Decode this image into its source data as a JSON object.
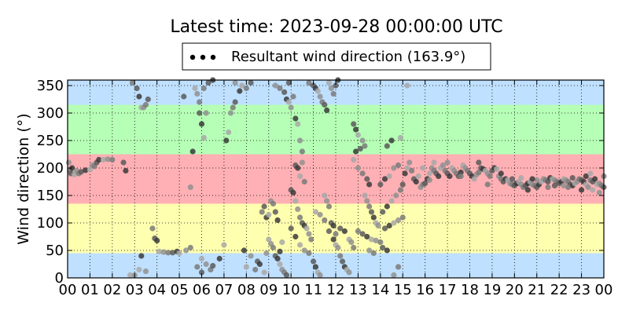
{
  "chart_data": {
    "type": "scatter",
    "title": "Latest time: 2023-09-28 00:00:00 UTC",
    "ylabel": "Wind direction (°)",
    "xlabel": "",
    "ylim": [
      0,
      360
    ],
    "xlim": [
      0,
      24
    ],
    "grid": true,
    "legend": {
      "placement": "top-center",
      "label": "Resultant wind direction (163.9°)"
    },
    "yticks": [
      0,
      50,
      100,
      150,
      200,
      250,
      300,
      350
    ],
    "xticks": [
      0,
      1,
      2,
      3,
      4,
      5,
      6,
      7,
      8,
      9,
      10,
      11,
      12,
      13,
      14,
      15,
      16,
      17,
      18,
      19,
      20,
      21,
      22,
      23,
      24
    ],
    "xtick_labels": [
      "00",
      "01",
      "02",
      "03",
      "04",
      "05",
      "06",
      "07",
      "08",
      "09",
      "10",
      "11",
      "12",
      "13",
      "14",
      "15",
      "16",
      "17",
      "18",
      "19",
      "20",
      "21",
      "22",
      "23",
      "00"
    ],
    "bands": [
      {
        "from": 0,
        "to": 45,
        "color": "#bfe0ff"
      },
      {
        "from": 45,
        "to": 135,
        "color": "#ffffb0"
      },
      {
        "from": 135,
        "to": 225,
        "color": "#ffb0b4"
      },
      {
        "from": 225,
        "to": 315,
        "color": "#b6ffb6"
      },
      {
        "from": 315,
        "to": 360,
        "color": "#bfe0ff"
      }
    ],
    "point_colors": [
      "#909090",
      "#7a7a7a",
      "#5a5a5a",
      "#3a3a3a",
      "#a8a8a8"
    ],
    "points": [
      [
        0.05,
        210
      ],
      [
        0.1,
        195
      ],
      [
        0.15,
        190
      ],
      [
        0.2,
        200
      ],
      [
        0.3,
        188
      ],
      [
        0.4,
        195
      ],
      [
        0.5,
        190
      ],
      [
        0.6,
        193
      ],
      [
        0.8,
        196
      ],
      [
        1.0,
        197
      ],
      [
        1.1,
        205
      ],
      [
        1.2,
        203
      ],
      [
        1.3,
        210
      ],
      [
        1.4,
        215
      ],
      [
        1.6,
        215
      ],
      [
        1.8,
        216
      ],
      [
        2.0,
        215
      ],
      [
        2.5,
        210
      ],
      [
        2.6,
        195
      ],
      [
        2.8,
        5
      ],
      [
        3.0,
        5
      ],
      [
        2.9,
        355
      ],
      [
        3.1,
        345
      ],
      [
        3.2,
        330
      ],
      [
        3.3,
        310
      ],
      [
        3.4,
        310
      ],
      [
        3.5,
        315
      ],
      [
        3.6,
        325
      ],
      [
        3.3,
        40
      ],
      [
        3.2,
        15
      ],
      [
        3.5,
        12
      ],
      [
        3.8,
        90
      ],
      [
        3.9,
        72
      ],
      [
        4.0,
        68
      ],
      [
        4.1,
        48
      ],
      [
        4.3,
        47
      ],
      [
        4.5,
        46
      ],
      [
        4.7,
        46
      ],
      [
        4.9,
        48
      ],
      [
        5.0,
        45
      ],
      [
        5.3,
        50
      ],
      [
        5.5,
        55
      ],
      [
        5.2,
        330
      ],
      [
        5.6,
        230
      ],
      [
        5.7,
        345
      ],
      [
        5.8,
        335
      ],
      [
        5.9,
        320
      ],
      [
        5.9,
        300
      ],
      [
        6.0,
        280
      ],
      [
        6.1,
        255
      ],
      [
        6.2,
        300
      ],
      [
        6.1,
        345
      ],
      [
        6.3,
        355
      ],
      [
        6.5,
        360
      ],
      [
        6.0,
        35
      ],
      [
        6.2,
        25
      ],
      [
        6.4,
        15
      ],
      [
        6.5,
        22
      ],
      [
        6.8,
        35
      ],
      [
        7.0,
        60
      ],
      [
        5.5,
        165
      ],
      [
        5.8,
        20
      ],
      [
        6.0,
        10
      ],
      [
        7.1,
        250
      ],
      [
        7.2,
        265
      ],
      [
        7.3,
        300
      ],
      [
        7.4,
        310
      ],
      [
        7.5,
        320
      ],
      [
        7.7,
        340
      ],
      [
        7.8,
        350
      ],
      [
        7.5,
        355
      ],
      [
        8.0,
        345
      ],
      [
        8.2,
        355
      ],
      [
        7.9,
        50
      ],
      [
        8.0,
        20
      ],
      [
        8.2,
        40
      ],
      [
        8.4,
        15
      ],
      [
        8.5,
        30
      ],
      [
        8.6,
        25
      ],
      [
        8.8,
        10
      ],
      [
        8.9,
        45
      ],
      [
        8.7,
        120
      ],
      [
        8.8,
        130
      ],
      [
        8.9,
        110
      ],
      [
        9.0,
        115
      ],
      [
        9.1,
        140
      ],
      [
        9.2,
        135
      ],
      [
        9.3,
        120
      ],
      [
        9.4,
        105
      ],
      [
        9.0,
        70
      ],
      [
        9.1,
        62
      ],
      [
        9.2,
        55
      ],
      [
        9.3,
        40
      ],
      [
        9.4,
        35
      ],
      [
        9.5,
        25
      ],
      [
        9.6,
        15
      ],
      [
        9.7,
        10
      ],
      [
        9.8,
        5
      ],
      [
        9.5,
        48
      ],
      [
        9.6,
        65
      ],
      [
        9.3,
        350
      ],
      [
        9.5,
        345
      ],
      [
        9.7,
        338
      ],
      [
        9.8,
        325
      ],
      [
        9.9,
        320
      ],
      [
        10.0,
        310
      ],
      [
        10.1,
        330
      ],
      [
        9.9,
        355
      ],
      [
        10.2,
        290
      ],
      [
        10.3,
        280
      ],
      [
        10.4,
        250
      ],
      [
        10.5,
        230
      ],
      [
        10.2,
        205
      ],
      [
        10.3,
        200
      ],
      [
        10.4,
        185
      ],
      [
        10.5,
        210
      ],
      [
        10.6,
        175
      ],
      [
        10.0,
        160
      ],
      [
        10.1,
        155
      ],
      [
        10.2,
        140
      ],
      [
        10.3,
        125
      ],
      [
        10.4,
        110
      ],
      [
        10.5,
        100
      ],
      [
        10.6,
        95
      ],
      [
        10.7,
        90
      ],
      [
        10.8,
        80
      ],
      [
        10.9,
        70
      ],
      [
        10.0,
        90
      ],
      [
        10.2,
        75
      ],
      [
        10.4,
        60
      ],
      [
        10.6,
        50
      ],
      [
        10.8,
        45
      ],
      [
        11.0,
        30
      ],
      [
        11.1,
        20
      ],
      [
        11.2,
        10
      ],
      [
        11.3,
        5
      ],
      [
        10.8,
        355
      ],
      [
        11.0,
        350
      ],
      [
        11.1,
        345
      ],
      [
        11.2,
        340
      ],
      [
        11.3,
        330
      ],
      [
        11.4,
        320
      ],
      [
        11.5,
        315
      ],
      [
        11.6,
        305
      ],
      [
        11.7,
        355
      ],
      [
        11.8,
        345
      ],
      [
        11.9,
        335
      ],
      [
        12.0,
        350
      ],
      [
        12.1,
        360
      ],
      [
        11.5,
        150
      ],
      [
        11.6,
        140
      ],
      [
        11.7,
        130
      ],
      [
        11.8,
        100
      ],
      [
        11.9,
        95
      ],
      [
        11.1,
        120
      ],
      [
        11.3,
        115
      ],
      [
        11.5,
        105
      ],
      [
        11.7,
        85
      ],
      [
        11.9,
        70
      ],
      [
        12.0,
        60
      ],
      [
        12.1,
        55
      ],
      [
        12.2,
        40
      ],
      [
        12.3,
        30
      ],
      [
        12.4,
        20
      ],
      [
        12.5,
        15
      ],
      [
        12.6,
        10
      ],
      [
        12.0,
        80
      ],
      [
        12.2,
        90
      ],
      [
        12.4,
        85
      ],
      [
        12.6,
        70
      ],
      [
        12.7,
        65
      ],
      [
        12.8,
        55
      ],
      [
        12.8,
        280
      ],
      [
        12.9,
        270
      ],
      [
        13.0,
        260
      ],
      [
        13.2,
        250
      ],
      [
        13.3,
        240
      ],
      [
        13.1,
        235
      ],
      [
        12.9,
        230
      ],
      [
        12.8,
        215
      ],
      [
        13.0,
        200
      ],
      [
        13.2,
        190
      ],
      [
        13.4,
        180
      ],
      [
        13.5,
        170
      ],
      [
        13.3,
        150
      ],
      [
        13.4,
        140
      ],
      [
        13.5,
        130
      ],
      [
        13.6,
        120
      ],
      [
        13.7,
        110
      ],
      [
        13.8,
        100
      ],
      [
        13.9,
        95
      ],
      [
        13.0,
        85
      ],
      [
        13.2,
        80
      ],
      [
        13.4,
        75
      ],
      [
        13.6,
        70
      ],
      [
        13.8,
        68
      ],
      [
        14.0,
        65
      ],
      [
        14.2,
        90
      ],
      [
        14.4,
        95
      ],
      [
        14.6,
        100
      ],
      [
        14.8,
        105
      ],
      [
        15.0,
        110
      ],
      [
        14.1,
        120
      ],
      [
        14.3,
        130
      ],
      [
        14.5,
        140
      ],
      [
        14.7,
        150
      ],
      [
        14.9,
        160
      ],
      [
        14.0,
        170
      ],
      [
        14.2,
        180
      ],
      [
        14.4,
        185
      ],
      [
        14.6,
        200
      ],
      [
        14.8,
        205
      ],
      [
        14.3,
        240
      ],
      [
        14.5,
        250
      ],
      [
        14.9,
        255
      ],
      [
        13.5,
        50
      ],
      [
        13.7,
        45
      ],
      [
        14.1,
        55
      ],
      [
        14.3,
        50
      ],
      [
        15.2,
        350
      ],
      [
        14.6,
        5
      ],
      [
        14.8,
        20
      ],
      [
        15.0,
        170
      ],
      [
        15.1,
        190
      ],
      [
        15.2,
        200
      ],
      [
        15.3,
        210
      ],
      [
        15.4,
        195
      ],
      [
        15.5,
        180
      ],
      [
        15.6,
        175
      ],
      [
        15.7,
        185
      ],
      [
        15.8,
        165
      ],
      [
        15.9,
        170
      ],
      [
        16.0,
        172
      ],
      [
        16.1,
        180
      ],
      [
        16.2,
        190
      ],
      [
        16.3,
        200
      ],
      [
        16.4,
        195
      ],
      [
        16.5,
        190
      ],
      [
        16.6,
        185
      ],
      [
        16.7,
        200
      ],
      [
        16.8,
        205
      ],
      [
        16.9,
        195
      ],
      [
        17.0,
        190
      ],
      [
        17.1,
        185
      ],
      [
        17.2,
        200
      ],
      [
        17.3,
        195
      ],
      [
        17.4,
        190
      ],
      [
        17.5,
        185
      ],
      [
        17.6,
        192
      ],
      [
        17.7,
        205
      ],
      [
        17.8,
        200
      ],
      [
        17.9,
        195
      ],
      [
        18.0,
        190
      ],
      [
        18.1,
        185
      ],
      [
        18.2,
        180
      ],
      [
        18.3,
        188
      ],
      [
        18.4,
        192
      ],
      [
        18.5,
        200
      ],
      [
        18.6,
        198
      ],
      [
        18.7,
        195
      ],
      [
        18.8,
        190
      ],
      [
        18.9,
        185
      ],
      [
        19.0,
        195
      ],
      [
        19.1,
        200
      ],
      [
        19.2,
        198
      ],
      [
        19.3,
        185
      ],
      [
        19.4,
        180
      ],
      [
        19.5,
        175
      ],
      [
        19.6,
        180
      ],
      [
        19.7,
        178
      ],
      [
        19.8,
        172
      ],
      [
        19.9,
        170
      ],
      [
        20.0,
        168
      ],
      [
        20.1,
        172
      ],
      [
        20.2,
        175
      ],
      [
        20.3,
        170
      ],
      [
        20.4,
        165
      ],
      [
        20.5,
        168
      ],
      [
        20.6,
        172
      ],
      [
        20.7,
        175
      ],
      [
        20.8,
        170
      ],
      [
        20.9,
        168
      ],
      [
        21.0,
        165
      ],
      [
        21.1,
        170
      ],
      [
        21.2,
        175
      ],
      [
        21.3,
        180
      ],
      [
        21.4,
        178
      ],
      [
        21.5,
        175
      ],
      [
        21.6,
        182
      ],
      [
        21.7,
        180
      ],
      [
        21.8,
        178
      ],
      [
        21.9,
        175
      ],
      [
        22.0,
        172
      ],
      [
        22.1,
        175
      ],
      [
        22.2,
        180
      ],
      [
        22.3,
        178
      ],
      [
        22.4,
        175
      ],
      [
        22.5,
        170
      ],
      [
        22.6,
        168
      ],
      [
        22.7,
        172
      ],
      [
        22.8,
        175
      ],
      [
        22.9,
        180
      ],
      [
        23.0,
        178
      ],
      [
        23.1,
        175
      ],
      [
        23.2,
        170
      ],
      [
        23.3,
        165
      ],
      [
        23.4,
        178
      ],
      [
        23.5,
        175
      ],
      [
        23.6,
        180
      ],
      [
        23.7,
        170
      ],
      [
        23.8,
        172
      ],
      [
        23.9,
        168
      ],
      [
        24.0,
        165
      ],
      [
        23.2,
        185
      ],
      [
        23.5,
        160
      ],
      [
        23.8,
        155
      ],
      [
        22.4,
        165
      ],
      [
        21.8,
        168
      ],
      [
        20.6,
        160
      ],
      [
        16.4,
        210
      ],
      [
        17.0,
        210
      ],
      [
        17.6,
        185
      ],
      [
        18.4,
        210
      ],
      [
        19.4,
        190
      ],
      [
        20.3,
        182
      ],
      [
        21.0,
        178
      ],
      [
        21.5,
        165
      ],
      [
        22.6,
        182
      ],
      [
        23.0,
        160
      ],
      [
        15.9,
        200
      ],
      [
        16.2,
        178
      ],
      [
        18.8,
        170
      ],
      [
        19.9,
        180
      ],
      [
        20.8,
        180
      ],
      [
        23.4,
        190
      ],
      [
        22.2,
        168
      ],
      [
        24.0,
        185
      ]
    ]
  }
}
